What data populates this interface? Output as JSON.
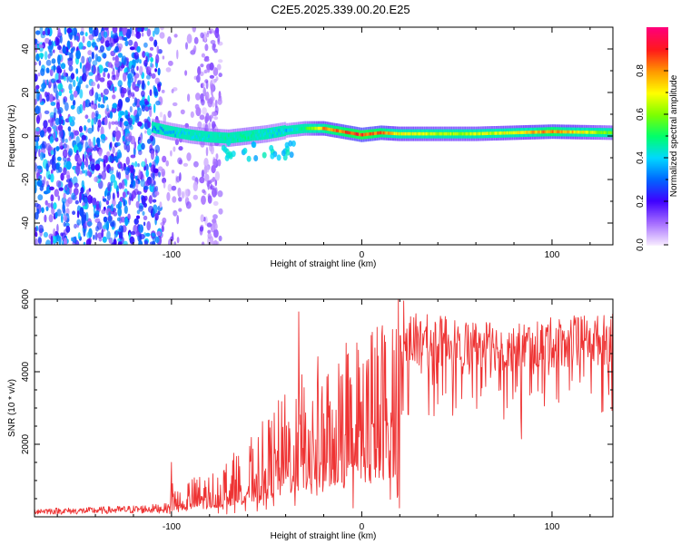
{
  "figure_title": "C2E5.2025.339.00.20.E25",
  "chart_data": [
    {
      "type": "heatmap",
      "title": "C2E5.2025.339.00.20.E25",
      "xlabel": "Height of straight line (km)",
      "ylabel": "Frequency (Hz)",
      "xlim": [
        -172,
        132
      ],
      "ylim": [
        -50,
        50
      ],
      "xticks": [
        -100,
        0,
        100
      ],
      "xtick_labels": [
        "-100",
        "0",
        "100"
      ],
      "yticks": [
        -40,
        -20,
        0,
        20,
        40
      ],
      "ytick_labels": [
        "-40",
        "-20",
        "0",
        "20",
        "40"
      ],
      "colorbar": {
        "label": "Normalized spectral amplitude",
        "range": [
          0,
          1
        ],
        "ticks": [
          0,
          0.2,
          0.4,
          0.6,
          0.8
        ],
        "tick_labels": [
          "0.0",
          "0.2",
          "0.4",
          "0.6",
          "0.8"
        ],
        "colors": [
          "#f4e6ff",
          "#a46cff",
          "#3f00ff",
          "#0066ff",
          "#00d8ff",
          "#00ff6a",
          "#7dff00",
          "#ffff00",
          "#ff9900",
          "#ff1a1a",
          "#ff0077"
        ]
      },
      "noise_region_x": [
        -172,
        -75
      ],
      "ridge": {
        "description": "dominant frequency ridge vs height",
        "x": [
          -110,
          -100,
          -90,
          -80,
          -70,
          -60,
          -50,
          -40,
          -30,
          -20,
          -10,
          0,
          10,
          20,
          40,
          60,
          80,
          100,
          132
        ],
        "frequency_hz": [
          4,
          2,
          0.5,
          -0.5,
          -1,
          0,
          1,
          2.5,
          3.5,
          3.5,
          2,
          0.5,
          1.5,
          1,
          1,
          1,
          1.5,
          2,
          1.5
        ],
        "amplitude": [
          0.35,
          0.4,
          0.45,
          0.45,
          0.5,
          0.5,
          0.45,
          0.4,
          0.55,
          0.85,
          0.9,
          0.95,
          0.9,
          0.75,
          0.7,
          0.7,
          0.75,
          0.9,
          0.6
        ]
      }
    },
    {
      "type": "line",
      "title": "",
      "xlabel": "Height of straight line (km)",
      "ylabel": "SNR (10 * v/v)",
      "xlim": [
        -172,
        132
      ],
      "ylim": [
        0,
        6000
      ],
      "xticks": [
        -100,
        0,
        100
      ],
      "xtick_labels": [
        "-100",
        "0",
        "100"
      ],
      "yticks": [
        2000,
        4000,
        6000
      ],
      "ytick_labels": [
        "2000",
        "4000",
        "6000"
      ],
      "series": [
        {
          "name": "SNR",
          "color": "#ee3333",
          "envelope_x": [
            -172,
            -150,
            -120,
            -101,
            -100,
            -90,
            -80,
            -70,
            -60,
            -50,
            -40,
            -30,
            -20,
            -10,
            0,
            10,
            20,
            25,
            30,
            40,
            50,
            60,
            70,
            80,
            90,
            100,
            110,
            120,
            132
          ],
          "envelope_y": [
            200,
            200,
            250,
            300,
            700,
            800,
            900,
            1200,
            1500,
            2000,
            2500,
            3000,
            3300,
            3600,
            3800,
            4000,
            4700,
            5100,
            5100,
            5050,
            5000,
            4950,
            4900,
            4850,
            4950,
            5000,
            5050,
            5050,
            5100
          ],
          "spikes": [
            {
              "x": -100,
              "y": 1500
            },
            {
              "x": -33,
              "y": 5650
            },
            {
              "x": 5,
              "y": 5000
            },
            {
              "x": 10,
              "y": 1650
            },
            {
              "x": 22,
              "y": 5950
            },
            {
              "x": 84,
              "y": 2150
            }
          ]
        }
      ]
    }
  ]
}
